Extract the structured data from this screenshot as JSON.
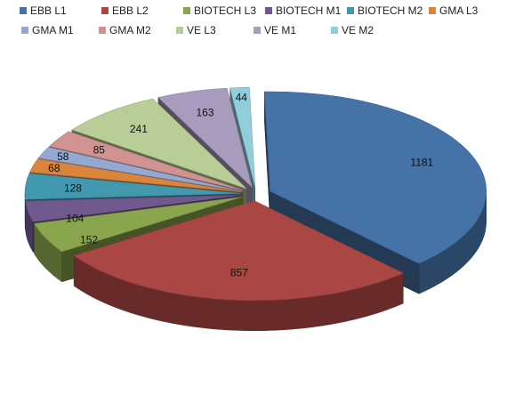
{
  "chart_data": {
    "type": "pie",
    "variant": "exploded-3d",
    "legend_position": "top",
    "categories": [
      "EBB L1",
      "EBB L2",
      "BIOTECH L3",
      "BIOTECH M1",
      "BIOTECH M2",
      "GMA L3",
      "GMA M1",
      "GMA M2",
      "VE L3",
      "VE M1",
      "VE M2"
    ],
    "values": [
      1181,
      857,
      152,
      104,
      128,
      68,
      58,
      85,
      241,
      163,
      44
    ],
    "colors": [
      "#4572A7",
      "#AA4643",
      "#89A54E",
      "#71588F",
      "#4198AF",
      "#DB843D",
      "#93A9CF",
      "#D19392",
      "#B9CD96",
      "#A99BBD",
      "#92CDDC"
    ]
  }
}
